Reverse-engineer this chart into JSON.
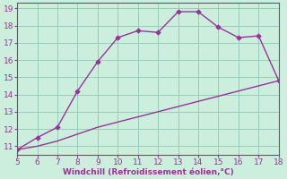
{
  "xlabel": "Windchill (Refroidissement éolien,°C)",
  "line1_x": [
    5,
    6,
    7,
    8,
    9,
    10,
    11,
    12,
    13,
    14,
    15,
    16,
    17,
    18
  ],
  "line1_y": [
    10.8,
    11.5,
    12.1,
    14.2,
    15.9,
    17.3,
    17.7,
    17.6,
    18.8,
    18.8,
    17.9,
    17.3,
    17.4,
    14.8
  ],
  "line2_x": [
    5,
    6,
    7,
    8,
    9,
    10,
    11,
    12,
    13,
    14,
    15,
    16,
    17,
    18
  ],
  "line2_y": [
    10.8,
    11.0,
    11.3,
    11.7,
    12.1,
    12.4,
    12.7,
    13.0,
    13.3,
    13.6,
    13.9,
    14.2,
    14.5,
    14.8
  ],
  "line_color": "#993399",
  "bg_color": "#cceedd",
  "grid_color": "#99ccbb",
  "xlim": [
    5,
    18
  ],
  "ylim": [
    10.5,
    19.3
  ],
  "xticks": [
    5,
    6,
    7,
    8,
    9,
    10,
    11,
    12,
    13,
    14,
    15,
    16,
    17,
    18
  ],
  "yticks": [
    11,
    12,
    13,
    14,
    15,
    16,
    17,
    18,
    19
  ],
  "tick_color": "#993399",
  "label_color": "#993399",
  "marker": "D",
  "markersize": 2.8,
  "linewidth": 1.0
}
